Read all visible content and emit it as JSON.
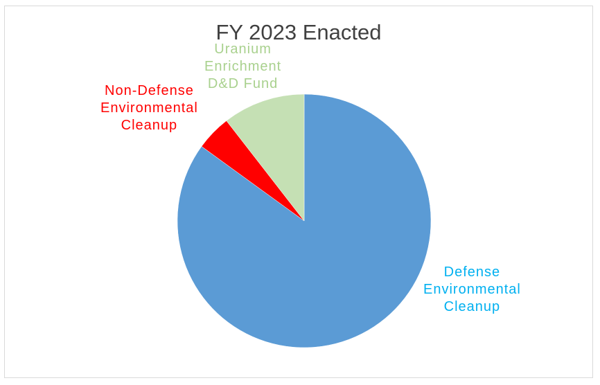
{
  "chart_data": {
    "type": "pie",
    "title": "FY 2023 Enacted",
    "slices": [
      {
        "name": "Defense Environmental Cleanup",
        "label_lines": [
          "Defense",
          "Environmental",
          "Cleanup"
        ],
        "value": 85,
        "color": "#5b9bd5",
        "label_color": "#00b0f0"
      },
      {
        "name": "Non-Defense Environmental Cleanup",
        "label_lines": [
          "Non-Defense",
          "Environmental",
          "Cleanup"
        ],
        "value": 4.5,
        "color": "#ff0000",
        "label_color": "#ff0000"
      },
      {
        "name": "Uranium Enrichment D&D Fund",
        "label_lines": [
          "Uranium",
          "Enrichment",
          "D&D Fund"
        ],
        "value": 10.5,
        "color": "#c5e0b4",
        "label_color": "#a9d18e"
      }
    ]
  }
}
